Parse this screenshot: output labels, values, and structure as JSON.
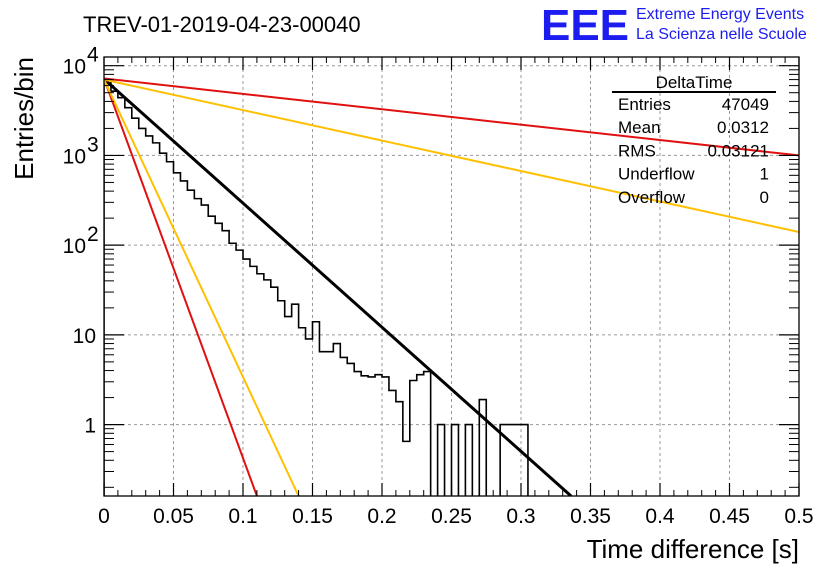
{
  "header": {
    "run_title": "TREV-01-2019-04-23-00040",
    "logo_mark": "EEE",
    "logo_line1": "Extreme Energy Events",
    "logo_line2": "La Scienza nelle Scuole",
    "logo_color": "#1c1cf0"
  },
  "stats_box": {
    "name": "DeltaTime",
    "rows": [
      {
        "label": "Entries",
        "value": "47049"
      },
      {
        "label": "Mean",
        "value": "0.0312"
      },
      {
        "label": "RMS",
        "value": "0.03121"
      },
      {
        "label": "Underflow",
        "value": "1"
      },
      {
        "label": "Overflow",
        "value": "0"
      }
    ]
  },
  "chart_data": {
    "type": "line",
    "xlabel": "Time difference [s]",
    "ylabel": "Entries/bin",
    "xlim": [
      0,
      0.5
    ],
    "ylim": [
      0.16,
      12500
    ],
    "y_scale": "log",
    "grid": true,
    "x_ticks": [
      "0",
      "0.05",
      "0.1",
      "0.15",
      "0.2",
      "0.25",
      "0.3",
      "0.35",
      "0.4",
      "0.45",
      "0.5"
    ],
    "y_ticks": [
      {
        "value": 1,
        "label": "1"
      },
      {
        "value": 10,
        "label": "10"
      },
      {
        "value": 100,
        "label": "10",
        "exp": "2"
      },
      {
        "value": 1000,
        "label": "10",
        "exp": "3"
      },
      {
        "value": 10000,
        "label": "10",
        "exp": "4"
      }
    ],
    "histogram": {
      "bin_width": 0.005,
      "values": [
        7000,
        5200,
        4400,
        3400,
        2600,
        2000,
        1650,
        1380,
        1060,
        850,
        640,
        520,
        410,
        330,
        280,
        210,
        175,
        145,
        105,
        88,
        70,
        58,
        48,
        41,
        34,
        24,
        16,
        22,
        12,
        9,
        14,
        6.5,
        6.5,
        8,
        5.6,
        4.8,
        3.9,
        3.5,
        3.4,
        3.6,
        3.4,
        2.4,
        1.8,
        0.65,
        3.1,
        3.6,
        3.9,
        0.1,
        1.0,
        0.1,
        1.0,
        0.1,
        1.0,
        0.1,
        1.9,
        0.1,
        0.1,
        1.0,
        1.0,
        1.0,
        1.0
      ]
    },
    "series": [
      {
        "x": [
          0,
          0.336
        ],
        "y": [
          7100,
          0.16
        ],
        "color": "#000000"
      },
      {
        "x": [
          0,
          0.5
        ],
        "y": [
          7200,
          1000
        ],
        "color": "#e01010"
      },
      {
        "x": [
          0,
          0.5
        ],
        "y": [
          7000,
          140
        ],
        "color": "#ffc000"
      },
      {
        "x": [
          0,
          0.11
        ],
        "y": [
          7200,
          0.16
        ],
        "color": "#e01010"
      },
      {
        "x": [
          0,
          0.14
        ],
        "y": [
          7000,
          0.16
        ],
        "color": "#ffc000"
      }
    ]
  }
}
